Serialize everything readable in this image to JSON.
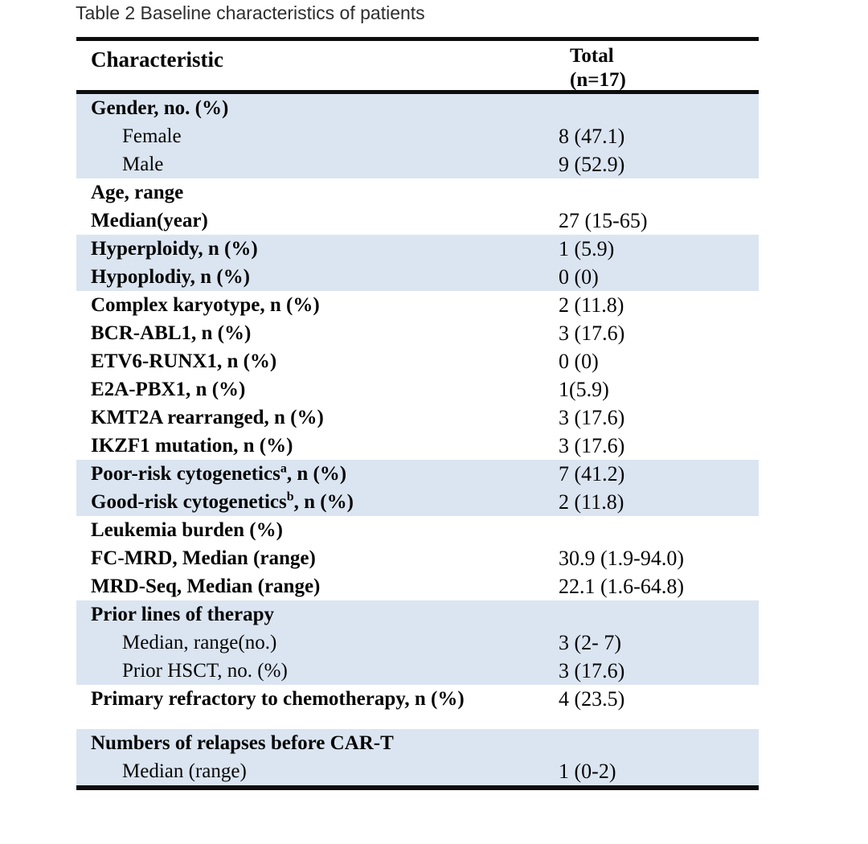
{
  "caption": "Table 2 Baseline characteristics of patients",
  "header": {
    "characteristic": "Characteristic",
    "total_line1": "Total",
    "total_line2": "(n=17)"
  },
  "colors": {
    "row_shade": "#dbe5f1",
    "rule": "#0d0d0d"
  },
  "rows": [
    {
      "label": "Gender, no. (%)",
      "value": "",
      "bold": true,
      "indent": false,
      "shade": true
    },
    {
      "label": "Female",
      "value": "8 (47.1)",
      "bold": false,
      "indent": true,
      "shade": true
    },
    {
      "label": "Male",
      "value": "9 (52.9)",
      "bold": false,
      "indent": true,
      "shade": true
    },
    {
      "label": "Age, range",
      "value": "",
      "bold": true,
      "indent": false,
      "shade": false
    },
    {
      "label": "Median(year)",
      "value": "27 (15-65)",
      "bold": true,
      "indent": false,
      "shade": false
    },
    {
      "label": "Hyperploidy, n (%)",
      "value": "1 (5.9)",
      "bold": true,
      "indent": false,
      "shade": true
    },
    {
      "label": "Hypoplodiy, n (%)",
      "value": "0 (0)",
      "bold": true,
      "indent": false,
      "shade": true
    },
    {
      "label": "Complex karyotype, n (%)",
      "value": "2 (11.8)",
      "bold": true,
      "indent": false,
      "shade": false
    },
    {
      "label": "BCR-ABL1, n (%)",
      "value": "3 (17.6)",
      "bold": true,
      "indent": false,
      "shade": false
    },
    {
      "label": "ETV6-RUNX1, n (%)",
      "value": "0 (0)",
      "bold": true,
      "indent": false,
      "shade": false
    },
    {
      "label": "E2A-PBX1, n (%)",
      "value": "1(5.9)",
      "bold": true,
      "indent": false,
      "shade": false
    },
    {
      "label": "KMT2A rearranged, n (%)",
      "value": "3 (17.6)",
      "bold": true,
      "indent": false,
      "shade": false
    },
    {
      "label": "IKZF1 mutation, n (%)",
      "value": "3 (17.6)",
      "bold": true,
      "indent": false,
      "shade": false
    },
    {
      "label": "Poor-risk cytogenetics",
      "sup": "a",
      "label_suffix": ", n (%)",
      "value": "7 (41.2)",
      "bold": true,
      "indent": false,
      "shade": true
    },
    {
      "label": "Good-risk cytogenetics",
      "sup": "b",
      "label_suffix": ", n (%)",
      "value": "2 (11.8)",
      "bold": true,
      "indent": false,
      "shade": true
    },
    {
      "label": "Leukemia burden (%)",
      "value": "",
      "bold": true,
      "indent": false,
      "shade": false
    },
    {
      "label": "FC-MRD, Median (range)",
      "value": "30.9 (1.9-94.0)",
      "bold": true,
      "indent": false,
      "shade": false
    },
    {
      "label": "MRD-Seq, Median (range)",
      "value": "22.1 (1.6-64.8)",
      "bold": true,
      "indent": false,
      "shade": false
    },
    {
      "label": "Prior lines of therapy",
      "value": "",
      "bold": true,
      "indent": false,
      "shade": true
    },
    {
      "label": "Median, range(no.)",
      "value": "3 (2- 7)",
      "bold": false,
      "indent": true,
      "shade": true
    },
    {
      "label": "Prior HSCT, no. (%)",
      "value": "3 (17.6)",
      "bold": false,
      "indent": true,
      "shade": true
    },
    {
      "label": "Primary refractory to chemotherapy, n (%)",
      "value": "4 (23.5)",
      "bold": true,
      "indent": false,
      "shade": false
    },
    {
      "spacer": true
    },
    {
      "label": "Numbers of relapses before CAR-T",
      "value": "",
      "bold": true,
      "indent": false,
      "shade": true
    },
    {
      "label": "Median (range)",
      "value": "1 (0-2)",
      "bold": false,
      "indent": true,
      "shade": true
    }
  ]
}
